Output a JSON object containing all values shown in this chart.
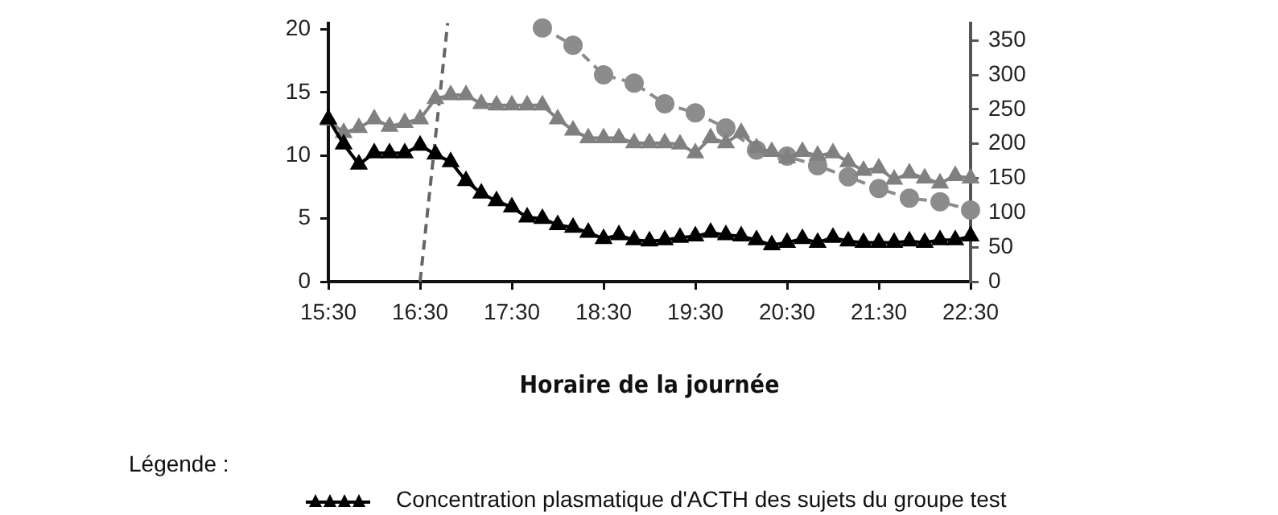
{
  "chart_data": {
    "type": "line",
    "xlabel": "Horaire de la journée",
    "legend_title": "Légende :",
    "legend": "bottom",
    "grid": false,
    "xlim": [
      15.5,
      22.5
    ],
    "xticks": [
      {
        "value": 15.5,
        "label": "15:30"
      },
      {
        "value": 16.5,
        "label": "16:30"
      },
      {
        "value": 17.5,
        "label": "17:30"
      },
      {
        "value": 18.5,
        "label": "18:30"
      },
      {
        "value": 19.5,
        "label": "19:30"
      },
      {
        "value": 20.5,
        "label": "20:30"
      },
      {
        "value": 21.5,
        "label": "21:30"
      },
      {
        "value": 22.5,
        "label": "22:30"
      }
    ],
    "ylim": [
      0,
      20.5
    ],
    "yticks": [
      0,
      5,
      10,
      15,
      20
    ],
    "y2lim": [
      0,
      375
    ],
    "y2ticks": [
      0,
      50,
      100,
      150,
      200,
      250,
      300,
      350
    ],
    "series": [
      {
        "name": "Concentration plasmatique d'ACTH des sujets du groupe test",
        "color": "#000000",
        "marker": "triangle",
        "line_style": "solid",
        "axis": "y",
        "x": [
          15.5,
          15.667,
          15.833,
          16,
          16.167,
          16.333,
          16.5,
          16.667,
          16.833,
          17,
          17.167,
          17.333,
          17.5,
          17.667,
          17.833,
          18,
          18.167,
          18.333,
          18.5,
          18.667,
          18.833,
          19,
          19.167,
          19.333,
          19.5,
          19.667,
          19.833,
          20,
          20.167,
          20.333,
          20.5,
          20.667,
          20.833,
          21,
          21.167,
          21.333,
          21.5,
          21.667,
          21.833,
          22,
          22.167,
          22.333,
          22.5
        ],
        "values": [
          12.9,
          10.9,
          9.3,
          10.2,
          10.2,
          10.2,
          10.8,
          10.1,
          9.5,
          8.0,
          7.0,
          6.4,
          5.9,
          5.1,
          5.0,
          4.5,
          4.3,
          3.9,
          3.4,
          3.7,
          3.3,
          3.2,
          3.3,
          3.5,
          3.6,
          3.9,
          3.7,
          3.6,
          3.3,
          2.9,
          3.1,
          3.4,
          3.1,
          3.5,
          3.2,
          3.1,
          3.1,
          3.1,
          3.2,
          3.1,
          3.3,
          3.3,
          3.6
        ]
      },
      {
        "color": "#808080",
        "marker": "triangle",
        "line_style": "solid",
        "axis": "y",
        "x": [
          15.5,
          15.667,
          15.833,
          16,
          16.167,
          16.333,
          16.5,
          16.667,
          16.833,
          17,
          17.167,
          17.333,
          17.5,
          17.667,
          17.833,
          18,
          18.167,
          18.333,
          18.5,
          18.667,
          18.833,
          19,
          19.167,
          19.333,
          19.5,
          19.667,
          19.833,
          20,
          20.167,
          20.333,
          20.5,
          20.667,
          20.833,
          21,
          21.167,
          21.333,
          21.5,
          21.667,
          21.833,
          22,
          22.167,
          22.333,
          22.5
        ],
        "values": [
          12.8,
          11.8,
          12.2,
          12.9,
          12.3,
          12.6,
          12.9,
          14.5,
          14.8,
          14.8,
          14.1,
          14.0,
          14.0,
          14.0,
          14.0,
          12.9,
          12.0,
          11.4,
          11.4,
          11.4,
          11.0,
          11.0,
          11.0,
          10.9,
          10.2,
          11.4,
          11.0,
          11.8,
          10.6,
          10.3,
          9.8,
          10.3,
          10.0,
          10.2,
          9.5,
          8.8,
          9.0,
          8.1,
          8.6,
          8.2,
          7.8,
          8.4,
          8.2
        ]
      },
      {
        "color": "#8c8c8c",
        "marker": "circle",
        "line_style": "dashed",
        "axis": "y2",
        "x": [
          17.833,
          18.167,
          18.5,
          18.833,
          19.167,
          19.5,
          19.833,
          20.167,
          20.5,
          20.833,
          21.167,
          21.5,
          21.833,
          22.167,
          22.5
        ],
        "values": [
          368,
          343,
          300,
          288,
          258,
          245,
          223,
          191,
          182,
          168,
          152,
          135,
          121,
          116,
          104
        ]
      },
      {
        "color": "#666666",
        "marker": "none",
        "line_style": "dashed",
        "axis": "y2",
        "x": [
          16.5,
          16.8
        ],
        "values": [
          0,
          375
        ]
      }
    ]
  }
}
